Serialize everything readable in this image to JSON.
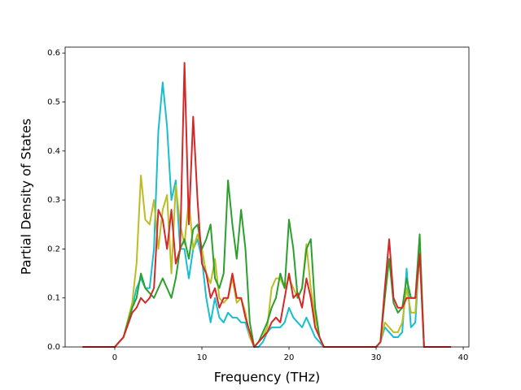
{
  "chart_data": {
    "type": "line",
    "xlabel": "Frequency (THz)",
    "ylabel": "Partial Density of States",
    "x": [
      -3.7,
      0,
      1,
      2,
      2.5,
      3,
      3.5,
      4,
      4.5,
      5,
      5.5,
      6,
      6.5,
      7,
      7.5,
      8,
      8.5,
      9,
      9.5,
      10,
      10.5,
      11,
      11.5,
      12,
      12.5,
      13,
      13.5,
      14,
      14.5,
      15,
      15.5,
      16,
      16.5,
      17,
      17.5,
      18,
      18.5,
      19,
      19.5,
      20,
      20.5,
      21,
      21.5,
      22,
      22.5,
      23,
      23.5,
      24,
      25,
      30,
      30.5,
      31,
      31.5,
      32,
      32.5,
      33,
      33.5,
      34,
      34.5,
      35,
      35.5,
      38.6
    ],
    "series": [
      {
        "color": "#17becf",
        "values": [
          0,
          0,
          0.02,
          0.08,
          0.12,
          0.14,
          0.12,
          0.12,
          0.2,
          0.44,
          0.54,
          0.45,
          0.3,
          0.34,
          0.2,
          0.2,
          0.14,
          0.2,
          0.22,
          0.18,
          0.1,
          0.05,
          0.1,
          0.06,
          0.05,
          0.07,
          0.06,
          0.06,
          0.05,
          0.05,
          0.02,
          0.0,
          0.0,
          0.01,
          0.03,
          0.04,
          0.04,
          0.04,
          0.05,
          0.08,
          0.06,
          0.05,
          0.04,
          0.06,
          0.04,
          0.02,
          0.01,
          0.0,
          0,
          0,
          0.01,
          0.04,
          0.03,
          0.02,
          0.02,
          0.03,
          0.16,
          0.04,
          0.05,
          0.2,
          0,
          0
        ]
      },
      {
        "color": "#bcbd22",
        "values": [
          0,
          0,
          0.02,
          0.09,
          0.17,
          0.35,
          0.26,
          0.25,
          0.3,
          0.2,
          0.28,
          0.31,
          0.15,
          0.33,
          0.25,
          0.21,
          0.3,
          0.2,
          0.23,
          0.2,
          0.15,
          0.13,
          0.18,
          0.1,
          0.09,
          0.1,
          0.14,
          0.09,
          0.1,
          0.07,
          0.02,
          0.0,
          0.01,
          0.02,
          0.04,
          0.12,
          0.14,
          0.14,
          0.12,
          0.14,
          0.12,
          0.1,
          0.12,
          0.21,
          0.12,
          0.06,
          0.02,
          0.0,
          0,
          0,
          0.01,
          0.05,
          0.04,
          0.03,
          0.03,
          0.05,
          0.12,
          0.07,
          0.07,
          0.2,
          0,
          0
        ]
      },
      {
        "color": "#2ca02c",
        "values": [
          0,
          0,
          0.02,
          0.08,
          0.1,
          0.15,
          0.12,
          0.11,
          0.1,
          0.12,
          0.14,
          0.12,
          0.1,
          0.14,
          0.2,
          0.22,
          0.18,
          0.24,
          0.25,
          0.2,
          0.22,
          0.25,
          0.14,
          0.12,
          0.15,
          0.34,
          0.25,
          0.18,
          0.28,
          0.2,
          0.05,
          0.0,
          0.01,
          0.03,
          0.05,
          0.08,
          0.1,
          0.15,
          0.12,
          0.26,
          0.2,
          0.1,
          0.12,
          0.2,
          0.22,
          0.08,
          0.02,
          0.0,
          0,
          0,
          0.01,
          0.1,
          0.18,
          0.09,
          0.07,
          0.08,
          0.14,
          0.1,
          0.1,
          0.23,
          0,
          0
        ]
      },
      {
        "color": "#d62728",
        "values": [
          0,
          0,
          0.02,
          0.07,
          0.08,
          0.1,
          0.09,
          0.1,
          0.12,
          0.28,
          0.26,
          0.2,
          0.28,
          0.17,
          0.2,
          0.58,
          0.25,
          0.47,
          0.3,
          0.17,
          0.15,
          0.1,
          0.12,
          0.08,
          0.1,
          0.1,
          0.15,
          0.1,
          0.1,
          0.06,
          0.03,
          0.0,
          0.01,
          0.02,
          0.03,
          0.05,
          0.06,
          0.05,
          0.1,
          0.15,
          0.1,
          0.11,
          0.08,
          0.14,
          0.1,
          0.04,
          0.02,
          0.0,
          0,
          0,
          0.01,
          0.12,
          0.22,
          0.1,
          0.08,
          0.08,
          0.1,
          0.1,
          0.1,
          0.19,
          0,
          0
        ]
      }
    ],
    "xlim": [
      -5.7,
      40.65
    ],
    "xticks": [
      0,
      10,
      20,
      30,
      40
    ],
    "ylim": [
      0,
      0.612
    ],
    "yticks": [
      {
        "value": 0,
        "label": "0.0"
      },
      0.1,
      0.2,
      0.3,
      0.4,
      0.5,
      0.6
    ],
    "grid": false
  }
}
